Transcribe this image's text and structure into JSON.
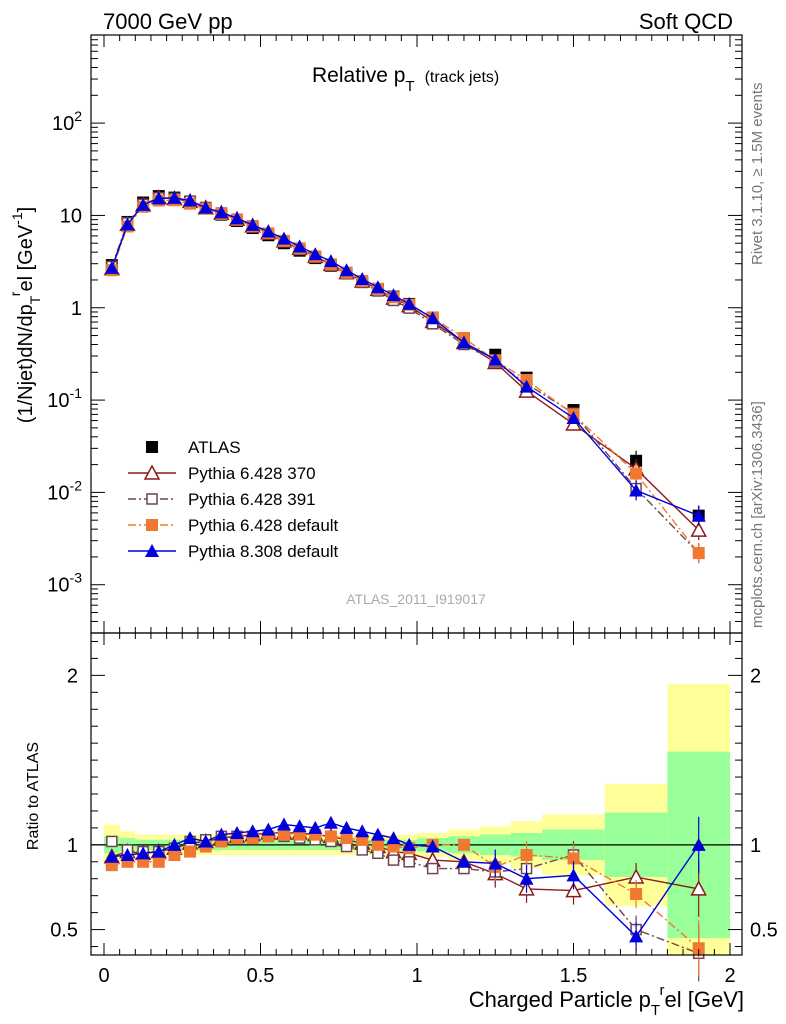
{
  "header": {
    "left": "7000 GeV pp",
    "right": "Soft QCD"
  },
  "side_labels": {
    "rivet": "Rivet 3.1.10, ≥ 1.5M events",
    "mcplots": "mcplots.cern.ch [arXiv:1306.3436]"
  },
  "chart_data": [
    {
      "type": "scatter",
      "title": "Relative p_T (track jets)",
      "title_main": "Relative p",
      "title_sub": "T",
      "title_note": "(track jets)",
      "ylabel": "(1/Njet)dN/dp_T^rel [GeV^-1]",
      "xlabel": "Charged Particle p_T^rel [GeV]",
      "yscale": "log",
      "ylim": [
        0.0003,
        900
      ],
      "xlim": [
        -0.05,
        2.05
      ],
      "yticks": [
        {
          "v": 0.001,
          "base": "10",
          "exp": "-3"
        },
        {
          "v": 0.01,
          "base": "10",
          "exp": "-2"
        },
        {
          "v": 0.1,
          "base": "10",
          "exp": "-1"
        },
        {
          "v": 1,
          "base": "1",
          "exp": ""
        },
        {
          "v": 10,
          "base": "10",
          "exp": ""
        },
        {
          "v": 100,
          "base": "10",
          "exp": "2"
        }
      ],
      "watermark": "ATLAS_2011_I919017",
      "legend_position": "bottom-left",
      "x": [
        0.025,
        0.075,
        0.125,
        0.175,
        0.225,
        0.275,
        0.325,
        0.375,
        0.425,
        0.475,
        0.525,
        0.575,
        0.625,
        0.675,
        0.725,
        0.775,
        0.825,
        0.875,
        0.925,
        0.975,
        1.05,
        1.15,
        1.25,
        1.35,
        1.5,
        1.7,
        1.9
      ],
      "series": [
        {
          "name": "ATLAS",
          "color": "#000000",
          "marker": "square-filled",
          "line": "none",
          "values": [
            2.9,
            8.5,
            13.8,
            16.2,
            15.6,
            14.0,
            11.9,
            10.2,
            8.7,
            7.3,
            6.1,
            5.0,
            4.15,
            3.45,
            2.85,
            2.35,
            1.9,
            1.6,
            1.32,
            1.1,
            0.78,
            0.47,
            0.31,
            0.175,
            0.078,
            0.022,
            0.0056
          ]
        },
        {
          "name": "Pythia 6.428 370",
          "color": "#8b1a1a",
          "marker": "triangle-open",
          "line": "solid",
          "values": [
            2.65,
            8.0,
            13.0,
            15.6,
            15.2,
            14.2,
            12.1,
            10.6,
            9.1,
            7.7,
            6.5,
            5.3,
            4.4,
            3.6,
            2.95,
            2.4,
            1.95,
            1.58,
            1.27,
            1.05,
            0.71,
            0.42,
            0.255,
            0.125,
            0.055,
            0.018,
            0.0039
          ]
        },
        {
          "name": "Pythia 6.428 391",
          "color": "#6b4650",
          "marker": "square-open",
          "line": "dashdot",
          "values": [
            2.8,
            8.3,
            13.2,
            15.5,
            15.3,
            14.3,
            12.2,
            10.6,
            9.1,
            7.7,
            6.4,
            5.2,
            4.3,
            3.55,
            2.9,
            2.35,
            1.88,
            1.52,
            1.2,
            0.99,
            0.67,
            0.4,
            0.26,
            0.15,
            0.072,
            0.011,
            0.0022
          ]
        },
        {
          "name": "Pythia 6.428 default",
          "color": "#f07830",
          "marker": "square-filled",
          "line": "dashdot",
          "values": [
            2.55,
            7.6,
            12.4,
            14.5,
            14.6,
            13.4,
            11.8,
            10.4,
            9.0,
            7.6,
            6.4,
            5.3,
            4.4,
            3.6,
            2.95,
            2.4,
            1.95,
            1.6,
            1.3,
            1.08,
            0.78,
            0.47,
            0.27,
            0.165,
            0.07,
            0.016,
            0.0022
          ]
        },
        {
          "name": "Pythia 8.308 default",
          "color": "#0000dd",
          "marker": "triangle-filled",
          "line": "solid",
          "values": [
            2.7,
            8.0,
            13.0,
            15.3,
            15.5,
            14.5,
            12.1,
            10.8,
            9.3,
            7.9,
            6.7,
            5.6,
            4.6,
            3.8,
            3.2,
            2.55,
            2.05,
            1.67,
            1.37,
            1.1,
            0.77,
            0.42,
            0.275,
            0.14,
            0.064,
            0.0105,
            0.0056
          ]
        }
      ]
    },
    {
      "type": "scatter",
      "ylabel": "Ratio to ATLAS",
      "ylim": [
        0.35,
        2.25
      ],
      "yticks": [
        0.5,
        1,
        2
      ],
      "xticks": [
        0,
        0.5,
        1,
        1.5,
        2
      ],
      "reference_line": 1,
      "x": [
        0.025,
        0.075,
        0.125,
        0.175,
        0.225,
        0.275,
        0.325,
        0.375,
        0.425,
        0.475,
        0.525,
        0.575,
        0.625,
        0.675,
        0.725,
        0.775,
        0.825,
        0.875,
        0.925,
        0.975,
        1.05,
        1.15,
        1.25,
        1.35,
        1.5,
        1.7,
        1.9
      ],
      "bands": {
        "edges": [
          0,
          0.05,
          0.1,
          0.15,
          0.2,
          0.25,
          0.3,
          0.35,
          0.4,
          0.45,
          0.5,
          0.55,
          0.6,
          0.65,
          0.7,
          0.75,
          0.8,
          0.85,
          0.9,
          0.95,
          1.0,
          1.1,
          1.2,
          1.3,
          1.4,
          1.6,
          1.8,
          2.0
        ],
        "inner_half": [
          0.05,
          0.04,
          0.03,
          0.03,
          0.03,
          0.03,
          0.03,
          0.03,
          0.03,
          0.03,
          0.03,
          0.03,
          0.03,
          0.03,
          0.03,
          0.03,
          0.03,
          0.03,
          0.03,
          0.03,
          0.04,
          0.05,
          0.06,
          0.07,
          0.09,
          0.19,
          0.55
        ],
        "outer_half": [
          0.12,
          0.08,
          0.06,
          0.06,
          0.06,
          0.06,
          0.06,
          0.06,
          0.06,
          0.06,
          0.06,
          0.06,
          0.06,
          0.06,
          0.06,
          0.06,
          0.06,
          0.06,
          0.06,
          0.06,
          0.07,
          0.09,
          0.11,
          0.14,
          0.18,
          0.36,
          0.95
        ],
        "inner_color": "#99ff99",
        "outer_color": "#ffff99"
      },
      "series": [
        {
          "name": "Pythia 6.428 370",
          "color": "#8b1a1a",
          "line": "solid",
          "marker": "triangle-open",
          "values": [
            0.93,
            0.96,
            0.95,
            0.96,
            0.98,
            1.01,
            1.02,
            1.04,
            1.05,
            1.06,
            1.07,
            1.07,
            1.07,
            1.06,
            1.05,
            1.03,
            1.01,
            0.99,
            0.96,
            0.95,
            0.91,
            0.9,
            0.83,
            0.74,
            0.73,
            0.81,
            0.74
          ]
        },
        {
          "name": "Pythia 6.428 391",
          "color": "#6b4650",
          "line": "dashdot",
          "marker": "square-open",
          "values": [
            1.02,
            0.97,
            0.96,
            0.96,
            0.98,
            1.02,
            1.03,
            1.05,
            1.05,
            1.05,
            1.05,
            1.05,
            1.04,
            1.03,
            1.02,
            0.99,
            0.97,
            0.95,
            0.91,
            0.9,
            0.86,
            0.86,
            0.84,
            0.86,
            0.94,
            0.5,
            0.34
          ]
        },
        {
          "name": "Pythia 6.428 default",
          "color": "#f07830",
          "line": "dashdot",
          "marker": "square-filled",
          "values": [
            0.88,
            0.9,
            0.9,
            0.9,
            0.94,
            0.96,
            0.99,
            1.02,
            1.04,
            1.04,
            1.05,
            1.06,
            1.06,
            1.06,
            1.05,
            1.04,
            1.03,
            1.0,
            0.99,
            0.98,
            1.0,
            1.0,
            0.87,
            0.94,
            0.92,
            0.71,
            0.39
          ]
        },
        {
          "name": "Pythia 8.308 default",
          "color": "#0000dd",
          "line": "solid",
          "marker": "triangle-filled",
          "values": [
            0.93,
            0.94,
            0.95,
            0.96,
            1.0,
            1.04,
            1.02,
            1.06,
            1.07,
            1.08,
            1.09,
            1.12,
            1.11,
            1.1,
            1.13,
            1.1,
            1.08,
            1.06,
            1.04,
            1.0,
            0.99,
            0.9,
            0.89,
            0.8,
            0.82,
            0.46,
            1.0
          ]
        }
      ]
    }
  ]
}
